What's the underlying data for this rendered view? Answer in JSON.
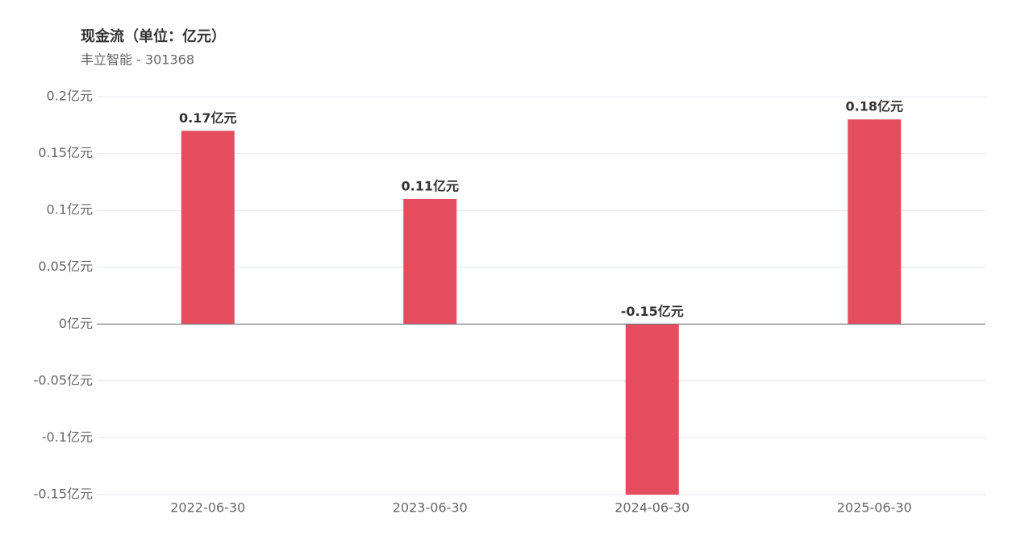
{
  "chart_data": {
    "type": "bar",
    "title": "现金流（单位：亿元）",
    "subtitle": "丰立智能 - 301368",
    "categories": [
      "2022-06-30",
      "2023-06-30",
      "2024-06-30",
      "2025-06-30"
    ],
    "values": [
      0.17,
      0.11,
      -0.15,
      0.18
    ],
    "value_labels": [
      "0.17亿元",
      "0.11亿元",
      "-0.15亿元",
      "0.18亿元"
    ],
    "color": "#e54d5f",
    "ylim": [
      -0.15,
      0.2
    ],
    "yticks": [
      {
        "value": -0.15,
        "label": "-0.15亿元"
      },
      {
        "value": -0.1,
        "label": "-0.1亿元"
      },
      {
        "value": -0.05,
        "label": "-0.05亿元"
      },
      {
        "value": 0,
        "label": "0亿元"
      },
      {
        "value": 0.05,
        "label": "0.05亿元"
      },
      {
        "value": 0.1,
        "label": "0.1亿元"
      },
      {
        "value": 0.15,
        "label": "0.15亿元"
      },
      {
        "value": 0.2,
        "label": "0.2亿元"
      }
    ],
    "grid": true
  }
}
